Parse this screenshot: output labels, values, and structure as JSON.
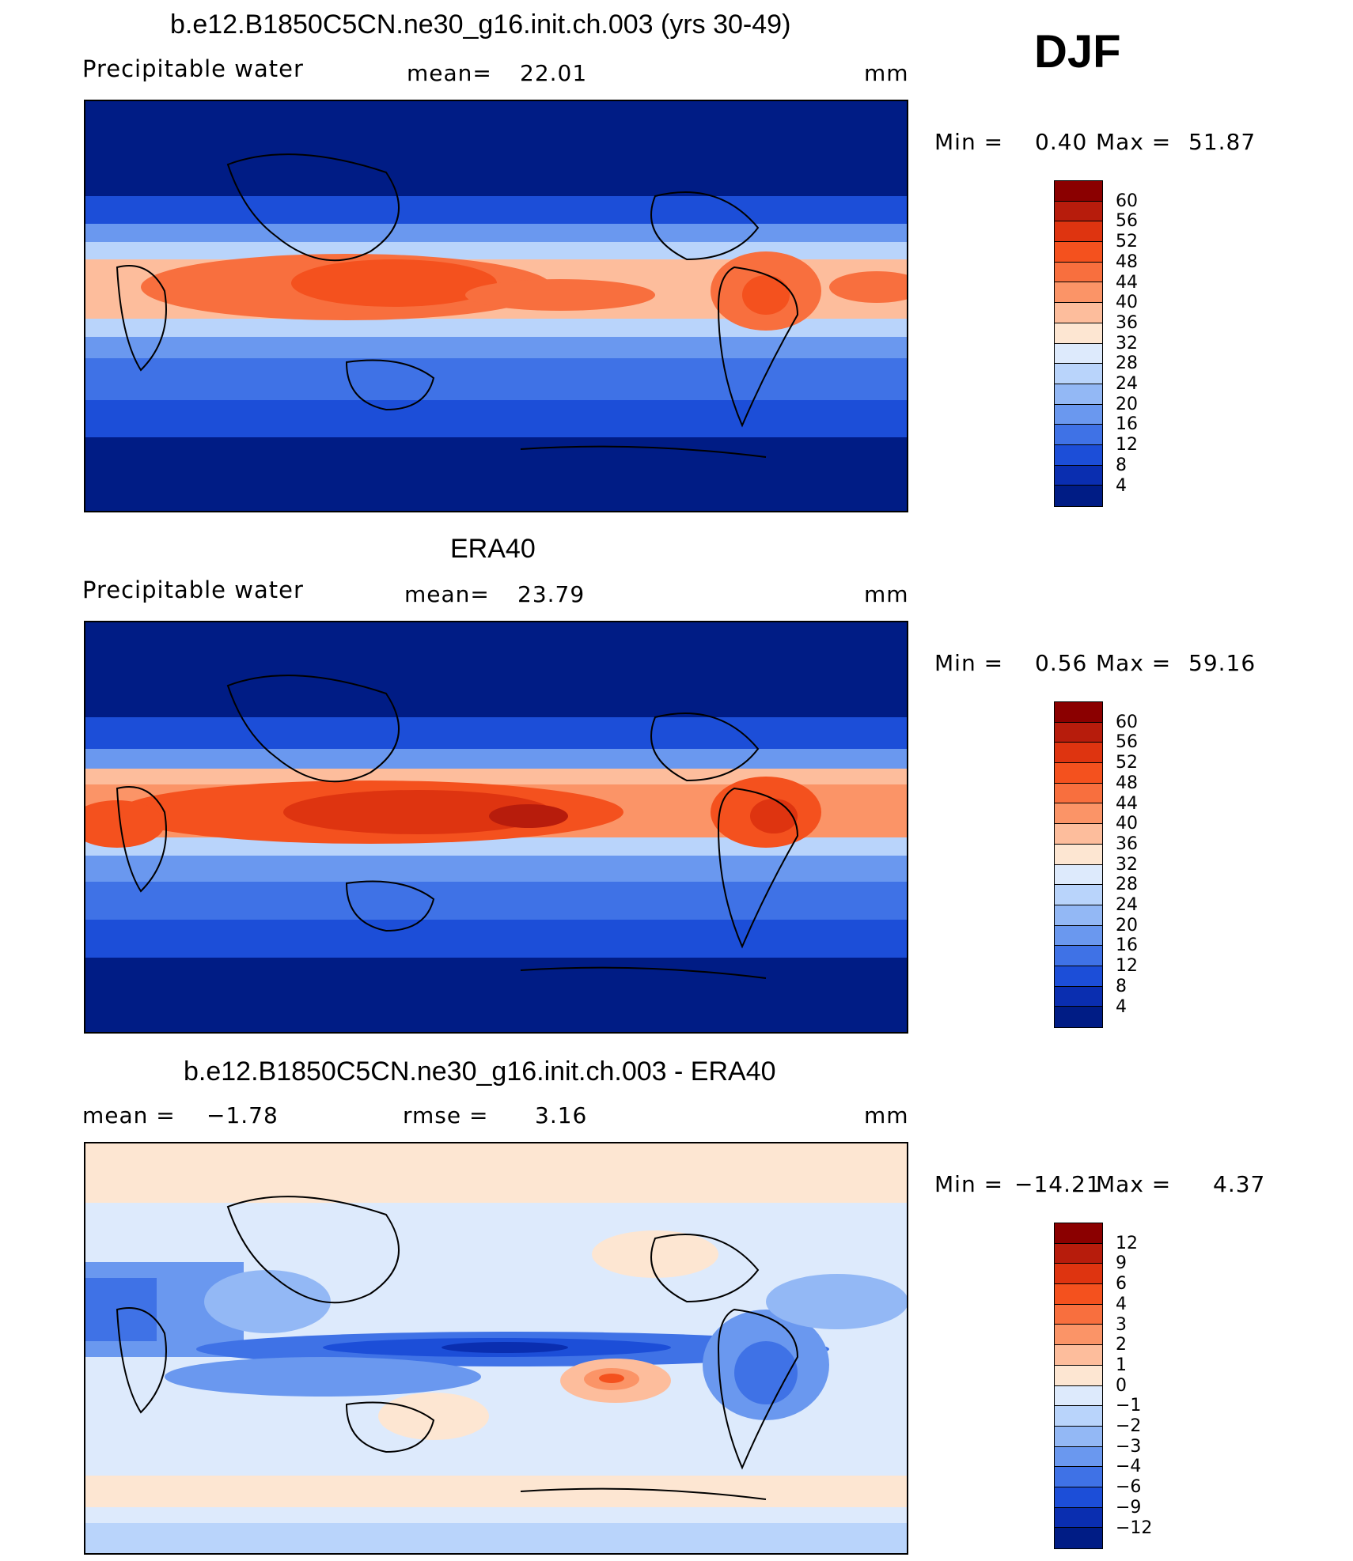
{
  "season": "DJF",
  "units": "mm",
  "panels": [
    {
      "id": "model",
      "title": "b.e12.B1850C5CN.ne30_g16.init.ch.003 (yrs 30-49)",
      "variable": "Precipitable water",
      "stat_label": "mean=",
      "stat_value": "22.01",
      "units": "mm",
      "min_label": "Min =",
      "min_value": "0.40",
      "max_label": "Max =",
      "max_value": "51.87",
      "colorbar_ticks": [
        "60",
        "56",
        "52",
        "48",
        "44",
        "40",
        "36",
        "32",
        "28",
        "24",
        "20",
        "16",
        "12",
        "8",
        "4"
      ],
      "colorbar_colors": [
        "#8b0000",
        "#b71c0c",
        "#de3410",
        "#f4511e",
        "#f86f3e",
        "#fb9467",
        "#fdbd9c",
        "#fde6d2",
        "#ddeafc",
        "#b9d4fb",
        "#93b8f5",
        "#6a98ef",
        "#3f72e6",
        "#1c4ed8",
        "#0a2eb0",
        "#001c85"
      ],
      "map_field": "model_pw"
    },
    {
      "id": "obs",
      "title": "ERA40",
      "variable": "Precipitable water",
      "stat_label": "mean=",
      "stat_value": "23.79",
      "units": "mm",
      "min_label": "Min =",
      "min_value": "0.56",
      "max_label": "Max =",
      "max_value": "59.16",
      "colorbar_ticks": [
        "60",
        "56",
        "52",
        "48",
        "44",
        "40",
        "36",
        "32",
        "28",
        "24",
        "20",
        "16",
        "12",
        "8",
        "4"
      ],
      "colorbar_colors": [
        "#8b0000",
        "#b71c0c",
        "#de3410",
        "#f4511e",
        "#f86f3e",
        "#fb9467",
        "#fdbd9c",
        "#fde6d2",
        "#ddeafc",
        "#b9d4fb",
        "#93b8f5",
        "#6a98ef",
        "#3f72e6",
        "#1c4ed8",
        "#0a2eb0",
        "#001c85"
      ],
      "map_field": "obs_pw"
    },
    {
      "id": "diff",
      "title": "b.e12.B1850C5CN.ne30_g16.init.ch.003 - ERA40",
      "variable": "mean =",
      "variable_value": "−1.78",
      "stat_label": "rmse =",
      "stat_value": "3.16",
      "units": "mm",
      "min_label": "Min =",
      "min_value": "−14.21",
      "max_label": "Max =",
      "max_value": "4.37",
      "colorbar_ticks": [
        "12",
        "9",
        "6",
        "4",
        "3",
        "2",
        "1",
        "0",
        "−1",
        "−2",
        "−3",
        "−4",
        "−6",
        "−9",
        "−12"
      ],
      "colorbar_colors": [
        "#8b0000",
        "#b71c0c",
        "#de3410",
        "#f4511e",
        "#f86f3e",
        "#fb9467",
        "#fdbd9c",
        "#fde6d2",
        "#ddeafc",
        "#b9d4fb",
        "#93b8f5",
        "#6a98ef",
        "#3f72e6",
        "#1c4ed8",
        "#0a2eb0",
        "#001c85"
      ],
      "map_field": "diff_pw"
    }
  ]
}
